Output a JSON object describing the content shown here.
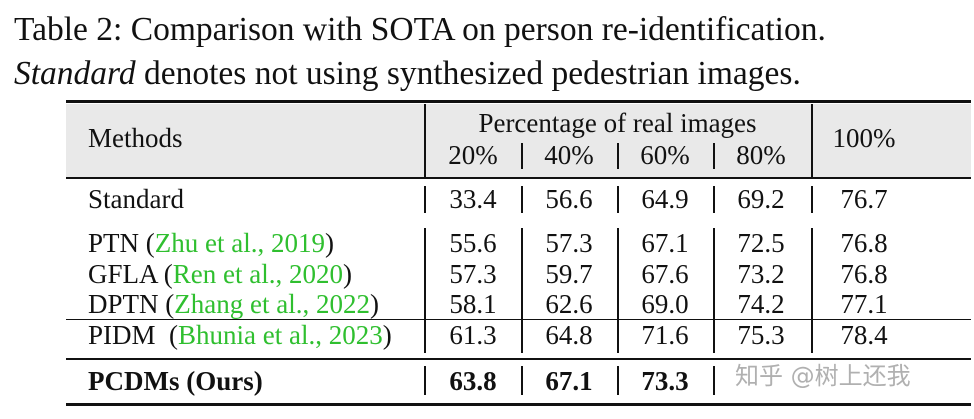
{
  "caption": {
    "line1": "Table 2: Comparison with SOTA on person re-identification.",
    "line2_italic": "Standard",
    "line2_rest": " denotes not using synthesized pedestrian images."
  },
  "table": {
    "header": {
      "methods": "Methods",
      "group": "Percentage of real images",
      "cols": [
        "20%",
        "40%",
        "60%",
        "80%"
      ],
      "last": "100%"
    },
    "standard": {
      "name": "Standard",
      "values": [
        "33.4",
        "56.6",
        "64.9",
        "69.2",
        "76.7"
      ]
    },
    "rows": [
      {
        "name": "PTN",
        "cite_open": "(",
        "author": "Zhu et al., ",
        "year": "2019",
        "cite_close": ")",
        "values": [
          "55.6",
          "57.3",
          "67.1",
          "72.5",
          "76.8"
        ]
      },
      {
        "name": "GFLA",
        "cite_open": "(",
        "author": "Ren et al., ",
        "year": "2020",
        "cite_close": ")",
        "values": [
          "57.3",
          "59.7",
          "67.6",
          "73.2",
          "76.8"
        ]
      },
      {
        "name": "DPTN",
        "cite_open": "(",
        "author": "Zhang et al., ",
        "year": "2022",
        "cite_close": ")",
        "values": [
          "58.1",
          "62.6",
          "69.0",
          "74.2",
          "77.1"
        ]
      },
      {
        "name": "PIDM",
        "cite_open": "(",
        "author": "Bhunia et al., ",
        "year": "2023",
        "cite_close": ")",
        "values": [
          "61.3",
          "64.8",
          "71.6",
          "75.3",
          "78.4"
        ]
      }
    ],
    "ours": {
      "name": "PCDMs (Ours)",
      "values": [
        "63.8",
        "67.1",
        "73.3",
        "",
        ""
      ]
    }
  },
  "watermark": "知乎 @树上还我",
  "colors": {
    "citation": "#2fbf2f",
    "header_bg": "#e9e9e9"
  }
}
